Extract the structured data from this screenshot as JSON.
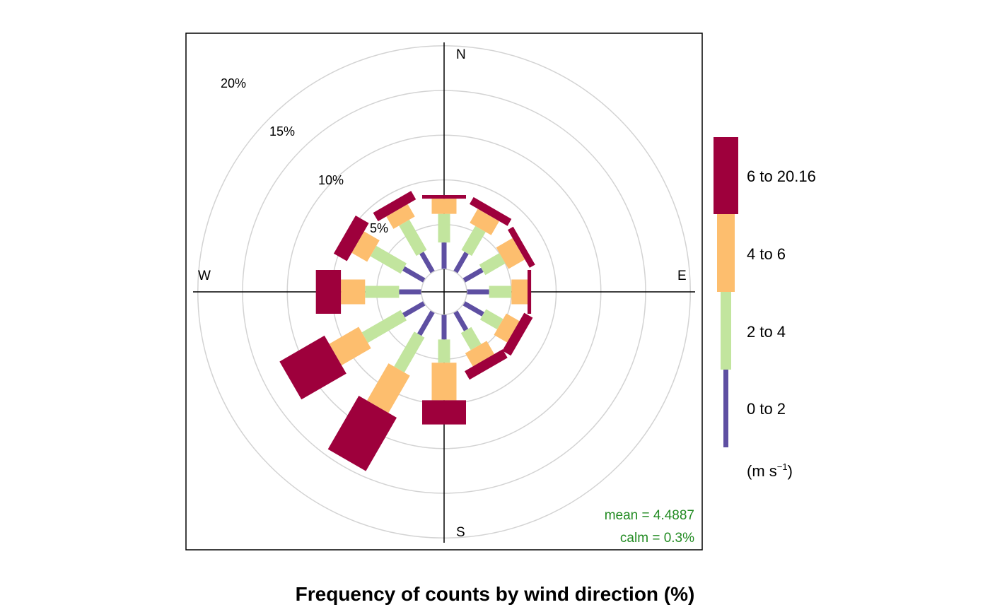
{
  "chart_data": {
    "type": "wind-rose",
    "title": "Frequency of counts by wind direction (%)",
    "directions": [
      "N",
      "E",
      "S",
      "W"
    ],
    "ring_labels": [
      "5%",
      "10%",
      "15%",
      "20%"
    ],
    "ring_values": [
      5,
      10,
      15,
      20,
      25
    ],
    "legend": {
      "unit_base": "(m s",
      "unit_sup": "−1",
      "unit_close": ")",
      "bins": [
        {
          "label": "0 to 2",
          "color": "#5e4fa2"
        },
        {
          "label": "2 to 4",
          "color": "#c2e59e"
        },
        {
          "label": "4 to 6",
          "color": "#fdbe6e"
        },
        {
          "label": "6 to 20.16",
          "color": "#9e003c"
        }
      ]
    },
    "stats": {
      "mean": "mean = 4.4887",
      "calm": "calm = 0.3%"
    },
    "angles": [
      0,
      30,
      60,
      90,
      120,
      150,
      180,
      210,
      240,
      270,
      300,
      330
    ],
    "cumulative": [
      [
        3.0,
        6.2,
        7.9,
        8.3
      ],
      [
        2.5,
        5.6,
        7.4,
        8.3
      ],
      [
        2.4,
        5.0,
        7.1,
        7.8
      ],
      [
        2.5,
        5.0,
        6.8,
        7.2
      ],
      [
        2.5,
        4.7,
        6.4,
        7.5
      ],
      [
        2.4,
        4.6,
        6.3,
        7.4
      ],
      [
        2.8,
        5.4,
        9.6,
        12.3
      ],
      [
        3.0,
        7.5,
        12.3,
        19.2
      ],
      [
        2.7,
        7.7,
        11.5,
        17.3
      ],
      [
        2.5,
        6.3,
        9.0,
        11.8
      ],
      [
        2.7,
        6.6,
        8.6,
        10.3
      ],
      [
        2.5,
        6.4,
        8.0,
        9.1
      ]
    ]
  }
}
